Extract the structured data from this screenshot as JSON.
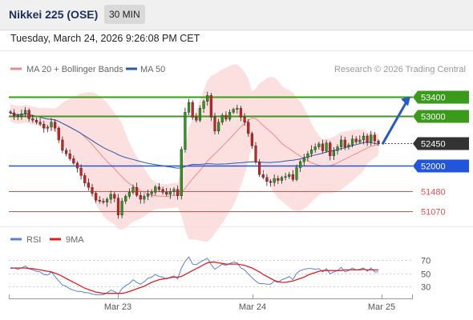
{
  "header": {
    "title": "Nikkei 225 (OSE)",
    "timeframe": "30 MIN"
  },
  "datetime": "Tuesday, March 24, 2026 9:26:08 PM CET",
  "legend": {
    "ma20": {
      "label": "MA 20 + Bollinger Bands",
      "color": "#ef8a8a"
    },
    "ma50": {
      "label": "MA 50",
      "color": "#2a5aa8"
    },
    "copyright": "Research © 2026 Trading Central"
  },
  "rsi_legend": {
    "rsi": {
      "label": "RSI",
      "color": "#5b7fd6"
    },
    "ma9": {
      "label": "9MA",
      "color": "#e02020"
    }
  },
  "chart_data": [
    {
      "type": "candlestick",
      "title": "",
      "ylim": [
        50770,
        53750
      ],
      "x_tick_labels": [
        "Mar 23",
        "Mar 24",
        "Mar 25"
      ],
      "levels": [
        {
          "value": 53400,
          "label": "53400",
          "kind": "resistance",
          "color": "#3a9a1a"
        },
        {
          "value": 53000,
          "label": "53000",
          "kind": "resistance",
          "color": "#3a9a1a"
        },
        {
          "value": 52450,
          "label": "52450",
          "kind": "last",
          "color": "#333333"
        },
        {
          "value": 52000,
          "label": "52000",
          "kind": "pivot",
          "color": "#2255dd"
        },
        {
          "value": 51480,
          "label": "51480",
          "kind": "support",
          "color": "#e05050"
        },
        {
          "value": 51070,
          "label": "51070",
          "kind": "support",
          "color": "#e05050"
        }
      ],
      "series": [
        {
          "name": "MA 20",
          "color": "#ef8a8a"
        },
        {
          "name": "MA 50",
          "color": "#2a5aa8"
        }
      ],
      "candles_close": [
        53070,
        53010,
        53000,
        53050,
        53120,
        52950,
        52920,
        52880,
        52840,
        52760,
        52780,
        52880,
        52760,
        52520,
        52310,
        52240,
        52140,
        52050,
        51950,
        51800,
        51650,
        51560,
        51440,
        51300,
        51280,
        51260,
        51320,
        51420,
        51340,
        51000,
        51280,
        51380,
        51460,
        51560,
        51400,
        51320,
        51380,
        51430,
        51460,
        51570,
        51520,
        51460,
        51420,
        51480,
        51520,
        51390,
        52330,
        53080,
        53280,
        52980,
        52920,
        53160,
        53300,
        53420,
        52980,
        52700,
        52880,
        53020,
        52940,
        53080,
        53140,
        53160,
        52980,
        52880,
        52650,
        52400,
        52080,
        51820,
        51760,
        51680,
        51660,
        51740,
        51700,
        51760,
        51780,
        51820,
        51720,
        51960,
        52080,
        52160,
        52240,
        52320,
        52380,
        52440,
        52300,
        52460,
        52200,
        52300,
        52380,
        52520,
        52380,
        52420,
        52540,
        52480,
        52520,
        52600,
        52480,
        52620,
        52500,
        52460
      ],
      "arrow": {
        "from_value": 52450,
        "to_value": 53400,
        "direction": "up"
      }
    },
    {
      "type": "line",
      "title": "",
      "ylim": [
        15,
        85
      ],
      "y_ticks": [
        70,
        50,
        30
      ],
      "series": [
        {
          "name": "RSI",
          "color": "#5b7fd6",
          "values": [
            57,
            58,
            56,
            58,
            61,
            57,
            55,
            53,
            52,
            48,
            47,
            52,
            45,
            38,
            32,
            30,
            26,
            24,
            22,
            22,
            20,
            20,
            18,
            17,
            17,
            17,
            20,
            24,
            22,
            18,
            26,
            31,
            34,
            40,
            36,
            33,
            37,
            42,
            44,
            48,
            45,
            44,
            41,
            44,
            46,
            41,
            58,
            68,
            75,
            64,
            63,
            67,
            70,
            73,
            63,
            56,
            60,
            64,
            62,
            65,
            67,
            66,
            58,
            55,
            49,
            43,
            38,
            34,
            34,
            33,
            33,
            38,
            36,
            40,
            42,
            45,
            40,
            50,
            54,
            56,
            57,
            57,
            56,
            57,
            52,
            57,
            49,
            52,
            54,
            59,
            52,
            54,
            58,
            55,
            56,
            58,
            53,
            58,
            52,
            52
          ]
        },
        {
          "name": "9MA",
          "color": "#e02020",
          "values": [
            58,
            58,
            58,
            58,
            58,
            57,
            57,
            56,
            55,
            54,
            53,
            52,
            50,
            48,
            45,
            42,
            39,
            36,
            33,
            30,
            27,
            25,
            23,
            21,
            20,
            19,
            19,
            19,
            19,
            19,
            19,
            20,
            22,
            24,
            26,
            28,
            30,
            33,
            36,
            38,
            40,
            41,
            42,
            43,
            44,
            44,
            45,
            48,
            51,
            54,
            57,
            60,
            63,
            66,
            67,
            67,
            66,
            65,
            64,
            64,
            64,
            64,
            63,
            62,
            60,
            58,
            55,
            52,
            48,
            45,
            42,
            39,
            37,
            36,
            36,
            37,
            38,
            40,
            42,
            44,
            47,
            49,
            51,
            53,
            54,
            54,
            54,
            54,
            54,
            54,
            55,
            55,
            55,
            55,
            55,
            56,
            55,
            55,
            55,
            55
          ]
        }
      ]
    }
  ]
}
